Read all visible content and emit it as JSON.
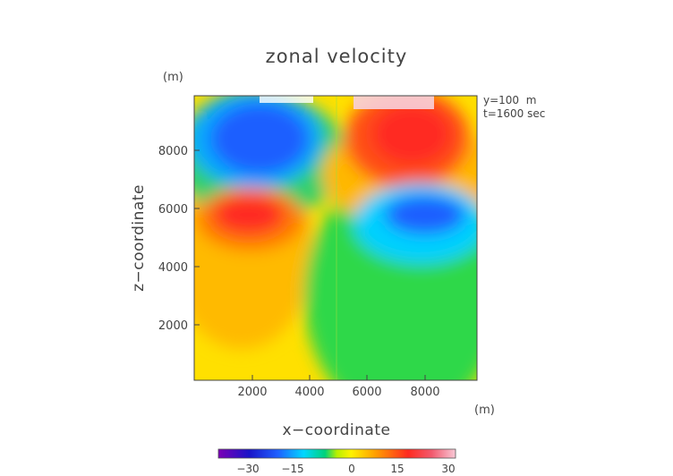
{
  "chart_data": {
    "type": "heatmap",
    "title": "zonal velocity",
    "xlabel": "x−coordinate",
    "ylabel": "z−coordinate",
    "x_unit": "(m)",
    "y_unit": "(m)",
    "annotations": [
      "y=100  m",
      "t=1600 sec"
    ],
    "xlim": [
      0,
      9800
    ],
    "ylim": [
      0,
      9800
    ],
    "x_ticks": [
      "2000",
      "4000",
      "6000",
      "8000"
    ],
    "y_ticks": [
      "2000",
      "4000",
      "6000",
      "8000"
    ],
    "colorbar": {
      "range": [
        -40,
        40
      ],
      "tick_labels": [
        "−30",
        "−15",
        "0",
        "15",
        "30"
      ],
      "tick_values": [
        -30,
        -15,
        0,
        15,
        30
      ]
    },
    "features": [
      {
        "x": 2400,
        "z": 8400,
        "value": -30
      },
      {
        "x": 8000,
        "z": 8400,
        "value": 25
      },
      {
        "x": 2000,
        "z": 5800,
        "value": 22
      },
      {
        "x": 8000,
        "z": 5800,
        "value": -25
      },
      {
        "x": 5000,
        "z": 9800,
        "value": 0
      },
      {
        "x": 5000,
        "z": 0,
        "value": 0
      }
    ]
  }
}
